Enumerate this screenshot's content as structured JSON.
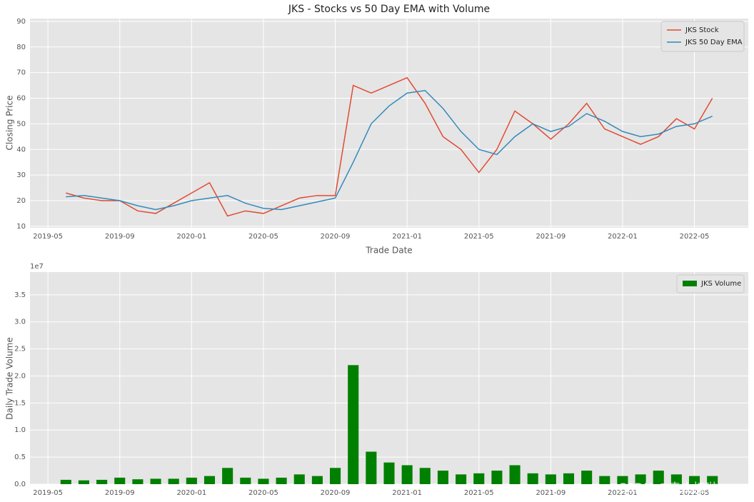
{
  "watermark": "CSDN @卖山楂啦prss",
  "chart_data": [
    {
      "type": "line",
      "title": "JKS - Stocks vs 50 Day EMA with Volume",
      "x": [
        "2019-06",
        "2019-07",
        "2019-08",
        "2019-09",
        "2019-10",
        "2019-11",
        "2019-12",
        "2020-01",
        "2020-02",
        "2020-03",
        "2020-04",
        "2020-05",
        "2020-06",
        "2020-07",
        "2020-08",
        "2020-09",
        "2020-10",
        "2020-11",
        "2020-12",
        "2021-01",
        "2021-02",
        "2021-03",
        "2021-04",
        "2021-05",
        "2021-06",
        "2021-07",
        "2021-08",
        "2021-09",
        "2021-10",
        "2021-11",
        "2021-12",
        "2022-01",
        "2022-02",
        "2022-03",
        "2022-04",
        "2022-05",
        "2022-06"
      ],
      "series": [
        {
          "name": "JKS Stock",
          "color": "#E24A33",
          "values": [
            23,
            21,
            20,
            20,
            16,
            15,
            19,
            23,
            27,
            14,
            16,
            15,
            18,
            21,
            22,
            22,
            65,
            62,
            65,
            68,
            58,
            45,
            40,
            31,
            40,
            55,
            50,
            44,
            50,
            58,
            48,
            45,
            42,
            45,
            52,
            48,
            60
          ]
        },
        {
          "name": "JKS 50 Day EMA",
          "color": "#348ABD",
          "values": [
            21.5,
            22,
            21,
            20,
            18,
            16.5,
            18,
            20,
            21,
            22,
            19,
            17,
            16.5,
            18,
            19.5,
            21,
            35,
            50,
            57,
            62,
            63,
            56,
            47,
            40,
            38,
            45,
            50,
            47,
            49,
            54,
            51,
            47,
            45,
            46,
            49,
            50,
            53
          ]
        }
      ],
      "xlim": [
        "2019-04",
        "2022-08"
      ],
      "xticks": [
        "2019-05",
        "2019-09",
        "2020-01",
        "2020-05",
        "2020-09",
        "2021-01",
        "2021-05",
        "2021-09",
        "2022-01",
        "2022-05"
      ],
      "ylim": [
        9.4,
        91.1
      ],
      "yticks": [
        10,
        20,
        30,
        40,
        50,
        60,
        70,
        80,
        90
      ],
      "xlabel": "Trade Date",
      "ylabel": "Closing Price",
      "grid": true,
      "legend": "upper right"
    },
    {
      "type": "bar",
      "x": [
        "2019-06",
        "2019-07",
        "2019-08",
        "2019-09",
        "2019-10",
        "2019-11",
        "2019-12",
        "2020-01",
        "2020-02",
        "2020-03",
        "2020-04",
        "2020-05",
        "2020-06",
        "2020-07",
        "2020-08",
        "2020-09",
        "2020-10",
        "2020-11",
        "2020-12",
        "2021-01",
        "2021-02",
        "2021-03",
        "2021-04",
        "2021-05",
        "2021-06",
        "2021-07",
        "2021-08",
        "2021-09",
        "2021-10",
        "2021-11",
        "2021-12",
        "2022-01",
        "2022-02",
        "2022-03",
        "2022-04",
        "2022-05",
        "2022-06"
      ],
      "series": [
        {
          "name": "JKS Volume",
          "color": "#008000",
          "values": [
            800000,
            700000,
            800000,
            1200000,
            900000,
            1000000,
            1000000,
            1200000,
            1500000,
            3000000,
            1200000,
            1000000,
            1200000,
            1800000,
            1500000,
            3000000,
            22000000,
            6000000,
            4000000,
            3500000,
            3000000,
            2500000,
            1800000,
            2000000,
            2500000,
            3500000,
            2000000,
            1800000,
            2000000,
            2500000,
            1500000,
            1500000,
            1800000,
            2500000,
            1800000,
            1500000,
            1500000
          ]
        }
      ],
      "xlim": [
        "2019-04",
        "2022-08"
      ],
      "xticks": [
        "2019-05",
        "2019-09",
        "2020-01",
        "2020-05",
        "2020-09",
        "2021-01",
        "2021-05",
        "2021-09",
        "2022-01",
        "2022-05"
      ],
      "ylim": [
        0,
        39200000
      ],
      "yticks": [
        {
          "value": 0,
          "label": "0.0"
        },
        {
          "value": 5000000,
          "label": "0.5"
        },
        {
          "value": 10000000,
          "label": "1.0"
        },
        {
          "value": 15000000,
          "label": "1.5"
        },
        {
          "value": 20000000,
          "label": "2.0"
        },
        {
          "value": 25000000,
          "label": "2.5"
        },
        {
          "value": 30000000,
          "label": "3.0"
        },
        {
          "value": 35000000,
          "label": "3.5"
        }
      ],
      "y_offset_label": "1e7",
      "ylabel": "Daily Trade Volume",
      "grid": true,
      "legend": "upper right"
    }
  ]
}
